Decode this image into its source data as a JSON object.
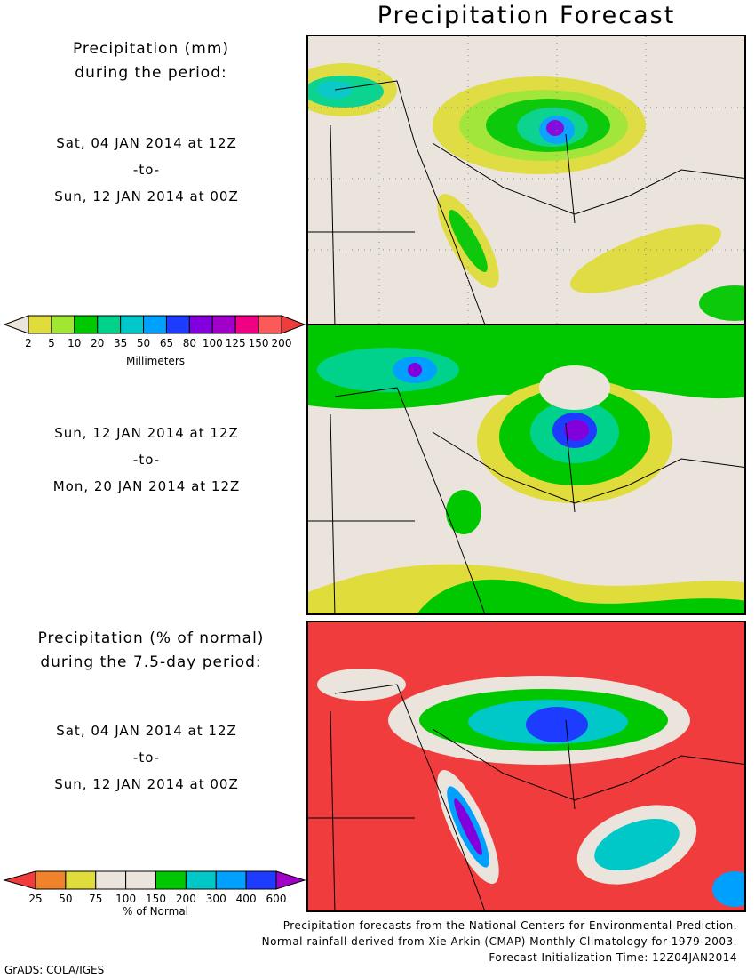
{
  "title": "Precipitation Forecast",
  "panel1": {
    "label_line1": "Precipitation (mm)",
    "label_line2": "during the period:",
    "start": "Sat, 04 JAN 2014 at 12Z",
    "to": "-to-",
    "end": "Sun, 12 JAN 2014 at 00Z"
  },
  "panel2": {
    "start": "Sun, 12 JAN 2014 at 12Z",
    "to": "-to-",
    "end": "Mon, 20 JAN 2014 at 12Z"
  },
  "panel3": {
    "label_line1": "Precipitation (% of normal)",
    "label_line2": "during the 7.5-day period:",
    "start": "Sat, 04 JAN 2014 at 12Z",
    "to": "-to-",
    "end": "Sun, 12 JAN 2014 at 00Z"
  },
  "colorbar_mm": {
    "title": "Millimeters",
    "ticks": [
      "2",
      "5",
      "10",
      "20",
      "35",
      "50",
      "65",
      "80",
      "100",
      "125",
      "150",
      "200"
    ],
    "low_color": "#ebe4dc",
    "colors": [
      "#e0dc3c",
      "#a0e632",
      "#00c800",
      "#00d28c",
      "#00c8c8",
      "#00a0ff",
      "#1e3cff",
      "#8200dc",
      "#a000c8",
      "#f00082",
      "#fa5a5a"
    ],
    "high_color": "#f03c3c"
  },
  "colorbar_pct": {
    "title": "% of Normal",
    "ticks": [
      "25",
      "50",
      "75",
      "100",
      "150",
      "200",
      "300",
      "400",
      "600"
    ],
    "low_color": "#f03c3c",
    "colors": [
      "#f0822c",
      "#e0dc3c",
      "#ebe4dc",
      "#ebe4dc",
      "#00c800",
      "#00c8c8",
      "#00a0ff",
      "#1e3cff"
    ],
    "high_color": "#a000c8"
  },
  "credits": [
    "Precipitation forecasts from the National Centers for Environmental Prediction.",
    "Normal rainfall derived from Xie-Arkin (CMAP) Monthly Climatology for 1979-2003.",
    "Forecast Initialization Time: 12Z04JAN2014"
  ],
  "grads": "GrADS: COLA/IGES"
}
